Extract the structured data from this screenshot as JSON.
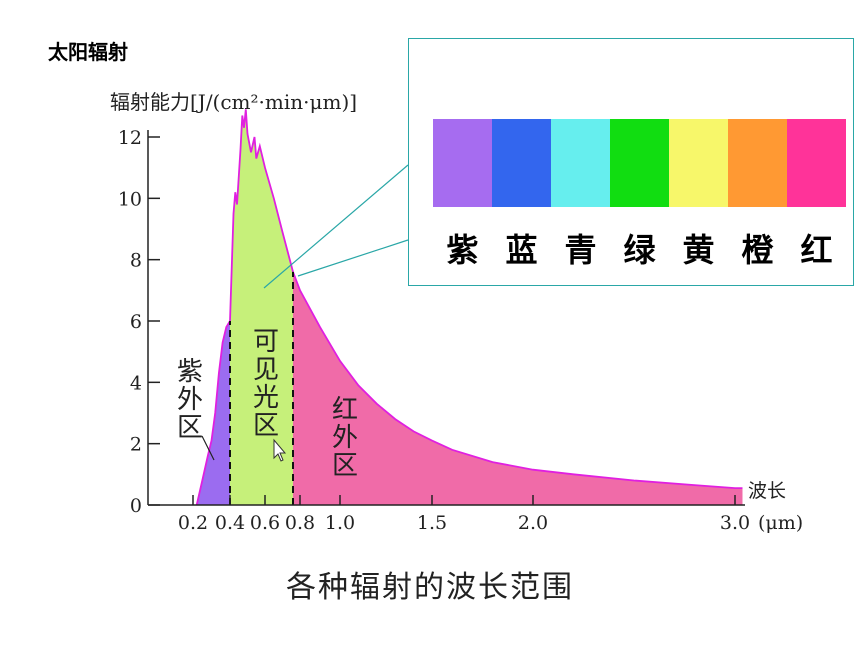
{
  "page": {
    "top_title": "太阳辐射",
    "caption": "各种辐射的波长范围"
  },
  "chart_data": {
    "type": "area",
    "title": "",
    "ylabel": "辐射能力[J/(cm²·min·μm)]",
    "xlabel": "波长",
    "x_unit": "(μm)",
    "xlim": [
      0,
      3.1
    ],
    "ylim": [
      0,
      13
    ],
    "yticks": [
      0,
      2,
      4,
      6,
      8,
      10,
      12
    ],
    "xticks": [
      {
        "value": 0.2,
        "label": "0.2"
      },
      {
        "value": 0.4,
        "label": "0.4"
      },
      {
        "value": 0.6,
        "label": "0.6"
      },
      {
        "value": 0.8,
        "label": "0.8"
      },
      {
        "value": 1.0,
        "label": "1.0"
      },
      {
        "value": 1.5,
        "label": "1.5"
      },
      {
        "value": 2.0,
        "label": "2.0"
      },
      {
        "value": 3.0,
        "label": "3.0"
      }
    ],
    "curve": [
      [
        0.22,
        0
      ],
      [
        0.25,
        0.8
      ],
      [
        0.28,
        1.6
      ],
      [
        0.3,
        2.1
      ],
      [
        0.32,
        3.0
      ],
      [
        0.34,
        4.3
      ],
      [
        0.36,
        5.3
      ],
      [
        0.38,
        5.8
      ],
      [
        0.4,
        6.0
      ],
      [
        0.42,
        9.5
      ],
      [
        0.43,
        10.2
      ],
      [
        0.44,
        9.8
      ],
      [
        0.46,
        11.6
      ],
      [
        0.47,
        12.7
      ],
      [
        0.48,
        12.3
      ],
      [
        0.49,
        12.9
      ],
      [
        0.5,
        12.1
      ],
      [
        0.52,
        11.5
      ],
      [
        0.54,
        12.0
      ],
      [
        0.55,
        11.3
      ],
      [
        0.57,
        11.7
      ],
      [
        0.6,
        11.0
      ],
      [
        0.65,
        10.0
      ],
      [
        0.7,
        8.9
      ],
      [
        0.76,
        7.6
      ],
      [
        0.8,
        7.0
      ],
      [
        0.9,
        5.8
      ],
      [
        1.0,
        4.7
      ],
      [
        1.1,
        3.9
      ],
      [
        1.2,
        3.3
      ],
      [
        1.3,
        2.8
      ],
      [
        1.4,
        2.4
      ],
      [
        1.5,
        2.1
      ],
      [
        1.6,
        1.8
      ],
      [
        1.8,
        1.4
      ],
      [
        2.0,
        1.15
      ],
      [
        2.2,
        1.0
      ],
      [
        2.5,
        0.8
      ],
      [
        2.8,
        0.65
      ],
      [
        3.0,
        0.55
      ],
      [
        3.05,
        0.55
      ]
    ],
    "regions": [
      {
        "name": "紫外区",
        "from": 0.22,
        "to": 0.4,
        "color": "#9b6cf0"
      },
      {
        "name": "可见光区",
        "from": 0.4,
        "to": 0.76,
        "color": "#c6f07a"
      },
      {
        "name": "红外区",
        "from": 0.76,
        "to": 3.05,
        "color": "#f06ba8"
      }
    ],
    "curve_color": "#e020e0",
    "divider_lines": [
      0.4,
      0.76
    ]
  },
  "spectrum": {
    "colors": [
      {
        "name": "紫",
        "hex": "#a66cf0"
      },
      {
        "name": "蓝",
        "hex": "#3366ee"
      },
      {
        "name": "青",
        "hex": "#66eeee"
      },
      {
        "name": "绿",
        "hex": "#11dd11"
      },
      {
        "name": "黄",
        "hex": "#f7f76a"
      },
      {
        "name": "橙",
        "hex": "#ff9933"
      },
      {
        "name": "红",
        "hex": "#ff3399"
      }
    ]
  }
}
